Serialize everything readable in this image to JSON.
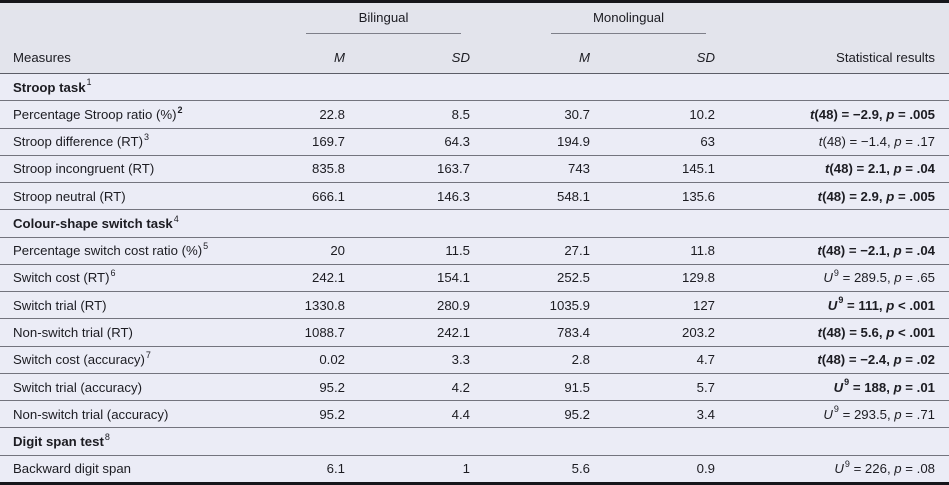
{
  "header": {
    "measures_label": "Measures",
    "groups": [
      {
        "label": "Bilingual"
      },
      {
        "label": "Monolingual"
      }
    ],
    "subheaders": {
      "m1": "M",
      "sd1": "SD",
      "m2": "M",
      "sd2": "SD"
    },
    "stats_label": "Statistical results"
  },
  "colors": {
    "header_bg": "#e3e4ec",
    "body_bg": "#ebecf6",
    "row_rule": "#73747e",
    "thick_border": "#16161b",
    "text": "#1c1c22"
  },
  "table": {
    "rows": [
      {
        "type": "section",
        "label": "Stroop task",
        "sup": "1"
      },
      {
        "type": "data",
        "label": "Percentage Stroop ratio (%)",
        "sup": "2",
        "sup_bold": true,
        "m1": "22.8",
        "sd1": "8.5",
        "m2": "30.7",
        "sd2": "10.2",
        "stat": {
          "lead": "t",
          "lead_sup": "",
          "mid": "(48) = −2.9, ",
          "p": "p",
          "tail": " = .005",
          "bold": true
        }
      },
      {
        "type": "data",
        "label": "Stroop difference (RT)",
        "sup": "3",
        "sup_bold": false,
        "m1": "169.7",
        "sd1": "64.3",
        "m2": "194.9",
        "sd2": "63",
        "stat": {
          "lead": "t",
          "lead_sup": "",
          "mid": "(48) = −1.4, ",
          "p": "p",
          "tail": " = .17",
          "bold": false
        }
      },
      {
        "type": "data",
        "label": "Stroop incongruent (RT)",
        "sup": "",
        "sup_bold": false,
        "m1": "835.8",
        "sd1": "163.7",
        "m2": "743",
        "sd2": "145.1",
        "stat": {
          "lead": "t",
          "lead_sup": "",
          "mid": "(48) = 2.1, ",
          "p": "p",
          "tail": " = .04",
          "bold": true
        }
      },
      {
        "type": "data",
        "label": "Stroop neutral (RT)",
        "sup": "",
        "sup_bold": false,
        "m1": "666.1",
        "sd1": "146.3",
        "m2": "548.1",
        "sd2": "135.6",
        "stat": {
          "lead": "t",
          "lead_sup": "",
          "mid": "(48) = 2.9, ",
          "p": "p",
          "tail": " = .005",
          "bold": true
        }
      },
      {
        "type": "section",
        "label": "Colour-shape switch task",
        "sup": "4"
      },
      {
        "type": "data",
        "label": "Percentage switch cost ratio (%)",
        "sup": "5",
        "sup_bold": false,
        "m1": "20",
        "sd1": "11.5",
        "m2": "27.1",
        "sd2": "11.8",
        "stat": {
          "lead": "t",
          "lead_sup": "",
          "mid": "(48) = −2.1, ",
          "p": "p",
          "tail": " = .04",
          "bold": true
        }
      },
      {
        "type": "data",
        "label": "Switch cost (RT)",
        "sup": "6",
        "sup_bold": false,
        "m1": "242.1",
        "sd1": "154.1",
        "m2": "252.5",
        "sd2": "129.8",
        "stat": {
          "lead": "U",
          "lead_sup": "9",
          "mid": " = 289.5, ",
          "p": "p",
          "tail": " = .65",
          "bold": false
        }
      },
      {
        "type": "data",
        "label": "Switch trial (RT)",
        "sup": "",
        "sup_bold": false,
        "m1": "1330.8",
        "sd1": "280.9",
        "m2": "1035.9",
        "sd2": "127",
        "stat": {
          "lead": "U",
          "lead_sup": "9",
          "mid": " = 111, ",
          "p": "p",
          "tail": " < .001",
          "bold": true
        }
      },
      {
        "type": "data",
        "label": "Non-switch trial (RT)",
        "sup": "",
        "sup_bold": false,
        "m1": "1088.7",
        "sd1": "242.1",
        "m2": "783.4",
        "sd2": "203.2",
        "stat": {
          "lead": "t",
          "lead_sup": "",
          "mid": "(48) = 5.6, ",
          "p": "p",
          "tail": " < .001",
          "bold": true
        }
      },
      {
        "type": "data",
        "label": "Switch cost (accuracy)",
        "sup": "7",
        "sup_bold": false,
        "m1": "0.02",
        "sd1": "3.3",
        "m2": "2.8",
        "sd2": "4.7",
        "stat": {
          "lead": "t",
          "lead_sup": "",
          "mid": "(48) = −2.4, ",
          "p": "p",
          "tail": " = .02",
          "bold": true
        }
      },
      {
        "type": "data",
        "label": "Switch trial (accuracy)",
        "sup": "",
        "sup_bold": false,
        "m1": "95.2",
        "sd1": "4.2",
        "m2": "91.5",
        "sd2": "5.7",
        "stat": {
          "lead": "U",
          "lead_sup": "9",
          "mid": " = 188, ",
          "p": "p",
          "tail": " = .01",
          "bold": true
        }
      },
      {
        "type": "data",
        "label": "Non-switch trial (accuracy)",
        "sup": "",
        "sup_bold": false,
        "m1": "95.2",
        "sd1": "4.4",
        "m2": "95.2",
        "sd2": "3.4",
        "stat": {
          "lead": "U",
          "lead_sup": "9",
          "mid": " = 293.5, ",
          "p": "p",
          "tail": " = .71",
          "bold": false
        }
      },
      {
        "type": "section",
        "label": "Digit span test",
        "sup": "8"
      },
      {
        "type": "data",
        "label": "Backward digit span",
        "sup": "",
        "sup_bold": false,
        "m1": "6.1",
        "sd1": "1",
        "m2": "5.6",
        "sd2": "0.9",
        "stat": {
          "lead": "U",
          "lead_sup": "9",
          "mid": " = 226, ",
          "p": "p",
          "tail": " = .08",
          "bold": false
        }
      }
    ]
  }
}
